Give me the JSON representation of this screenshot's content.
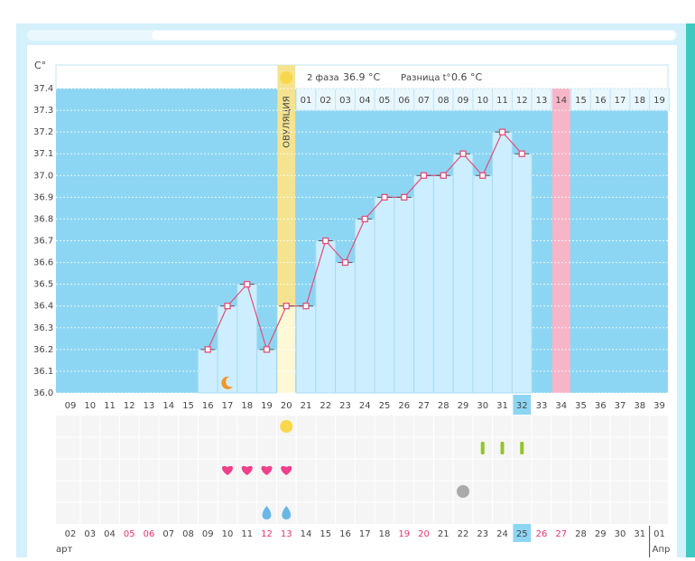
{
  "chart_data": {
    "type": "line",
    "y_label": "C°",
    "phase_label": "2 фаза",
    "phase_temp": "36.9 °C",
    "diff_label": "Разница t°",
    "diff": "0.6 °C",
    "ovulation_label": "ОВУЛЯЦИЯ",
    "ovulation_day": "20",
    "highlight_day": "32",
    "marked_day": "34",
    "categories": [
      "09",
      "10",
      "11",
      "12",
      "13",
      "14",
      "15",
      "16",
      "17",
      "18",
      "19",
      "20",
      "21",
      "22",
      "23",
      "24",
      "25",
      "26",
      "27",
      "28",
      "29",
      "30",
      "31",
      "32",
      "33",
      "34",
      "35",
      "36",
      "37",
      "38",
      "39"
    ],
    "phase_days": [
      null,
      null,
      null,
      null,
      null,
      null,
      null,
      null,
      null,
      null,
      null,
      null,
      "01",
      "02",
      "03",
      "04",
      "05",
      "06",
      "07",
      "08",
      "09",
      "10",
      "11",
      "12",
      "13",
      "14",
      "15",
      "16",
      "17",
      "18",
      "19"
    ],
    "dates": [
      "02",
      "03",
      "04",
      "05",
      "06",
      "07",
      "08",
      "09",
      "10",
      "11",
      "12",
      "13",
      "14",
      "15",
      "16",
      "17",
      "18",
      "19",
      "20",
      "21",
      "22",
      "23",
      "24",
      "25",
      "26",
      "27",
      "28",
      "29",
      "30",
      "31",
      "01"
    ],
    "holidays": [
      "05",
      "06",
      "12",
      "13",
      "19",
      "20",
      "26",
      "27"
    ],
    "holiday_color": "#e8336d",
    "months": [
      "арт",
      "Апр"
    ],
    "values": [
      null,
      null,
      null,
      null,
      null,
      null,
      null,
      36.2,
      36.4,
      36.5,
      36.2,
      36.4,
      36.4,
      36.7,
      36.6,
      36.8,
      36.9,
      36.9,
      37.0,
      37.0,
      37.1,
      37.0,
      37.2,
      37.1,
      null,
      null,
      null,
      null,
      null,
      null,
      null
    ],
    "color": "#e0507a",
    "ylim": [
      36.0,
      37.4
    ],
    "yticks": [
      {
        "value": 36.0,
        "label": "36.0"
      },
      36.1,
      36.2,
      36.3,
      36.4,
      36.5,
      36.6,
      36.7,
      36.8,
      36.9,
      {
        "value": 37.0,
        "label": "37.0"
      },
      37.1,
      37.2,
      37.3,
      37.4
    ],
    "grid": true,
    "markers": [
      {
        "type": "moon",
        "days": [
          "17"
        ]
      },
      {
        "type": "sun",
        "days": [
          "20"
        ]
      },
      {
        "type": "bar",
        "days": [
          "30",
          "31",
          "32"
        ]
      },
      {
        "type": "heart",
        "days": [
          "17",
          "18",
          "19",
          "20"
        ]
      },
      {
        "type": "circle",
        "days": [
          "29"
        ]
      },
      {
        "type": "drop",
        "days": [
          "19",
          "20"
        ]
      }
    ]
  }
}
